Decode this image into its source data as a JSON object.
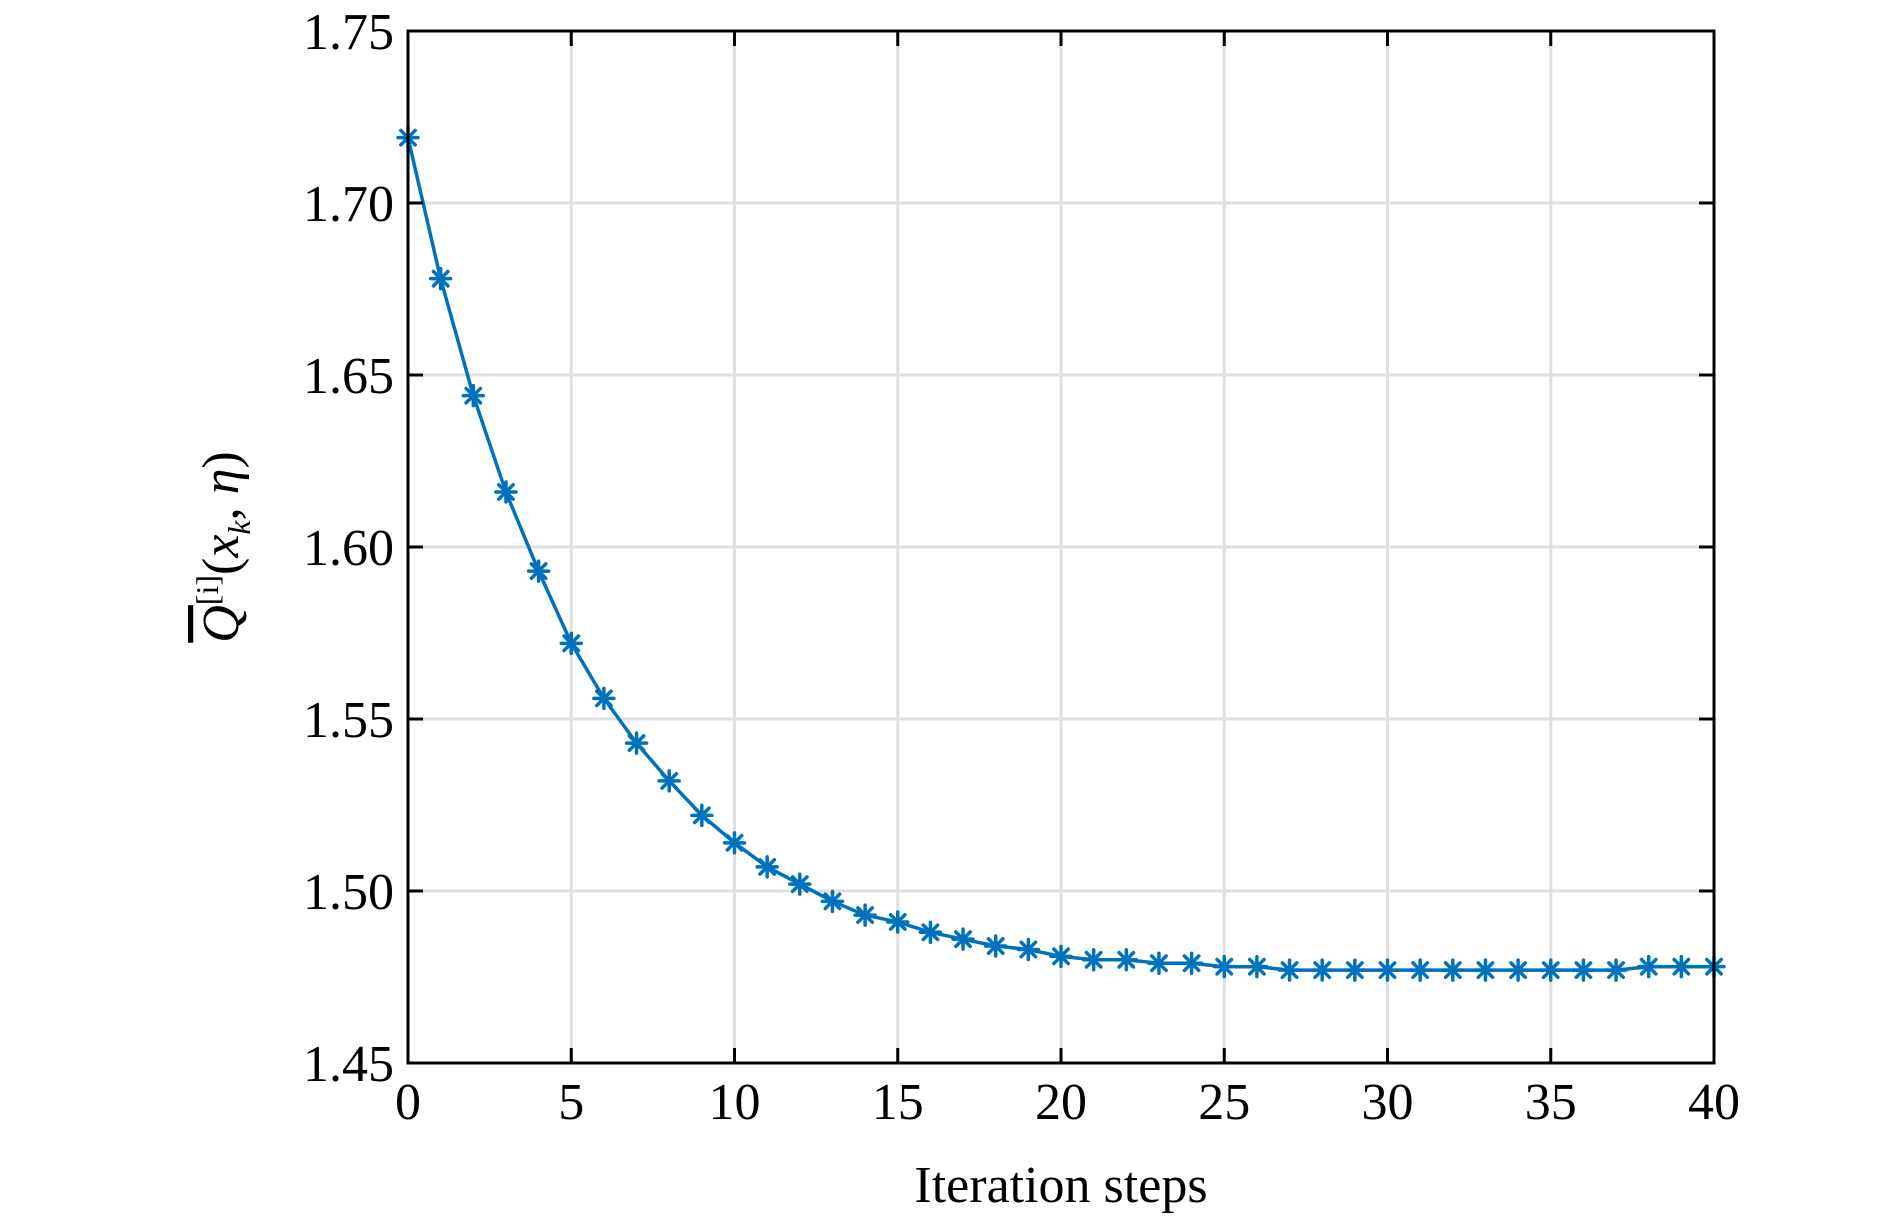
{
  "chart_data": {
    "type": "line",
    "title": "",
    "xlabel": "Iteration steps",
    "ylabel": {
      "symbol": "Q",
      "superscript": "[i]",
      "open": "(",
      "arg1": "x",
      "arg1_subscript": "k",
      "separator": ", ",
      "arg2": "η",
      "close": ")"
    },
    "xlim": [
      0,
      40
    ],
    "ylim": [
      1.45,
      1.75
    ],
    "xticks": [
      0,
      5,
      10,
      15,
      20,
      25,
      30,
      35,
      40
    ],
    "xtick_labels": [
      "0",
      "5",
      "10",
      "15",
      "20",
      "25",
      "30",
      "35",
      "40"
    ],
    "yticks": [
      1.45,
      1.5,
      1.55,
      1.6,
      1.65,
      1.7,
      1.75
    ],
    "ytick_labels": [
      "1.45",
      "1.50",
      "1.55",
      "1.60",
      "1.65",
      "1.70",
      "1.75"
    ],
    "grid": true,
    "series": [
      {
        "color": "#0072bd",
        "marker": "asterisk",
        "x": [
          0,
          1,
          2,
          3,
          4,
          5,
          6,
          7,
          8,
          9,
          10,
          11,
          12,
          13,
          14,
          15,
          16,
          17,
          18,
          19,
          20,
          21,
          22,
          23,
          24,
          25,
          26,
          27,
          28,
          29,
          30,
          31,
          32,
          33,
          34,
          35,
          36,
          37,
          38,
          39,
          40
        ],
        "y": [
          1.719,
          1.678,
          1.644,
          1.616,
          1.593,
          1.572,
          1.556,
          1.543,
          1.532,
          1.522,
          1.514,
          1.507,
          1.502,
          1.497,
          1.493,
          1.491,
          1.488,
          1.486,
          1.484,
          1.483,
          1.481,
          1.48,
          1.48,
          1.479,
          1.479,
          1.478,
          1.478,
          1.477,
          1.477,
          1.477,
          1.477,
          1.477,
          1.477,
          1.477,
          1.477,
          1.477,
          1.477,
          1.477,
          1.478,
          1.478,
          1.478
        ]
      }
    ]
  }
}
